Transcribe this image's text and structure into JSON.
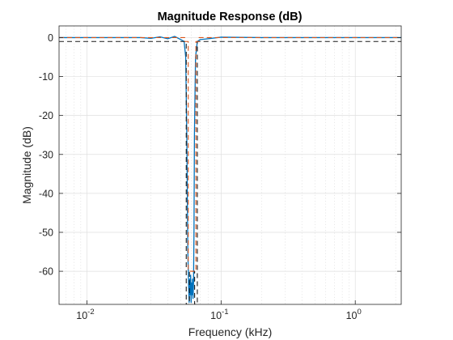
{
  "chart_data": {
    "type": "line",
    "title": "Magnitude Response (dB)",
    "xlabel": "Frequency (kHz)",
    "ylabel": "Magnitude (dB)",
    "xscale": "log",
    "xlim": [
      0.0062,
      2.2
    ],
    "ylim": [
      -68.5,
      3
    ],
    "grid": true,
    "minor_grid": true,
    "legend": "none",
    "x_ticks": [
      {
        "value": 0.01,
        "base": "10",
        "exp": "-2"
      },
      {
        "value": 0.1,
        "base": "10",
        "exp": "-1"
      },
      {
        "value": 1,
        "base": "10",
        "exp": "0"
      }
    ],
    "y_ticks": [
      {
        "value": 0,
        "label": "0"
      },
      {
        "value": -10,
        "label": "-10"
      },
      {
        "value": -20,
        "label": "-20"
      },
      {
        "value": -30,
        "label": "-30"
      },
      {
        "value": -40,
        "label": "-40"
      },
      {
        "value": -50,
        "label": "-50"
      },
      {
        "value": -60,
        "label": "-60"
      }
    ],
    "colors": {
      "response": "#0072BD",
      "mask": "#D95319",
      "spec": "#1a1a1a",
      "grid": "#dfdfdf"
    },
    "series": [
      {
        "style": "solid",
        "color": "#0072BD",
        "x": [
          0.0062,
          0.025,
          0.03,
          0.035,
          0.04,
          0.045,
          0.05,
          0.053,
          0.0545,
          0.0555,
          0.0565,
          0.0572,
          0.0578,
          0.0583,
          0.0588,
          0.0593,
          0.0598,
          0.0603,
          0.0608,
          0.0613,
          0.0618,
          0.0623,
          0.0628,
          0.0633,
          0.0645,
          0.0665,
          0.07,
          0.08,
          0.1,
          0.2,
          2.2
        ],
        "y": [
          0,
          0,
          -0.2,
          0.2,
          -0.3,
          0.3,
          -0.5,
          -1.0,
          -5,
          -25,
          -55,
          -63,
          -68,
          -62,
          -66,
          -61,
          -68,
          -63,
          -66,
          -62,
          -67,
          -63,
          -50,
          -25,
          -5,
          -1.0,
          -0.5,
          -0.3,
          0.1,
          0,
          0
        ]
      },
      {
        "style": "dashed",
        "color": "#1a1a1a",
        "x": [
          0.0062,
          0.055,
          0.055,
          0.0581,
          0.0581,
          0.0635,
          0.0635,
          0.0665,
          0.0665,
          2.2
        ],
        "y": [
          -1,
          -1,
          -68.5,
          -68.5,
          -60,
          -60,
          -68.5,
          -68.5,
          -1,
          -1
        ]
      },
      {
        "style": "dashed",
        "color": "#D95319",
        "x": [
          0.0062,
          0.0536,
          0.0536,
          0.0569,
          0.0569,
          0.0649,
          0.0649,
          0.0685,
          0.0685,
          2.2
        ],
        "y": [
          0,
          0,
          -1,
          -1,
          -60,
          -60,
          -1,
          -1,
          0,
          0
        ]
      }
    ]
  }
}
